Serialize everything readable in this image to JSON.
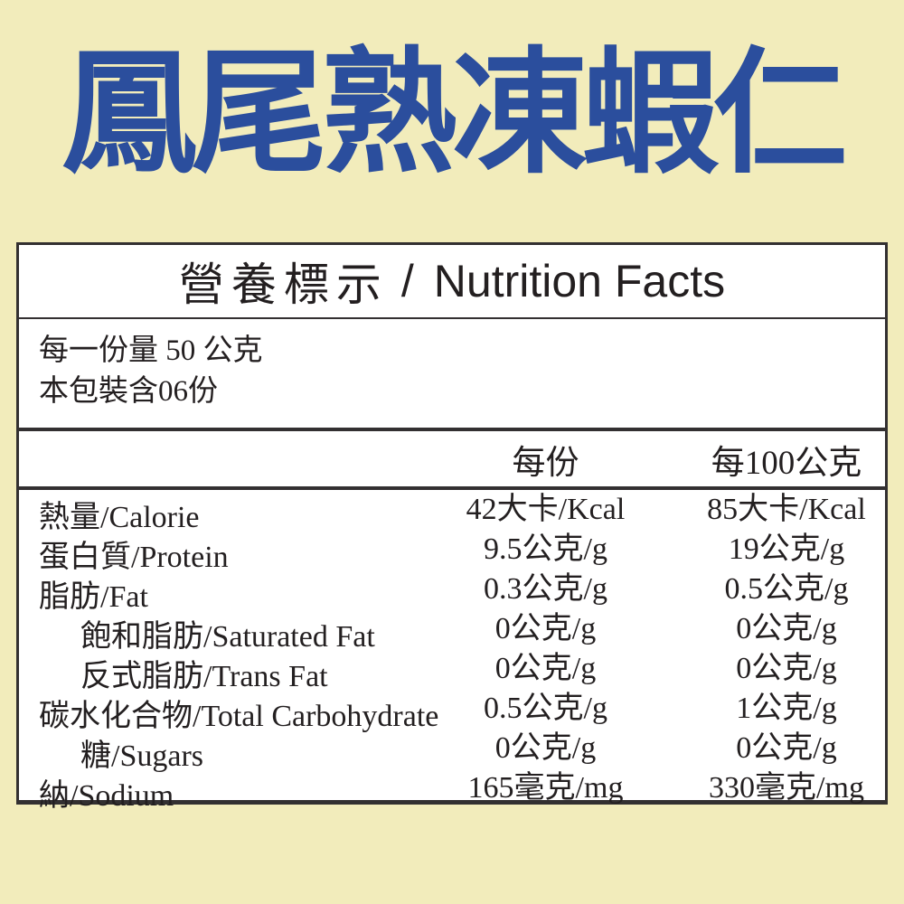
{
  "product": {
    "title": "鳳尾熟凍蝦仁"
  },
  "colors": {
    "background": "#F2ECBB",
    "title_blue": "#2B4E9D",
    "text": "#231F20",
    "border": "#333031",
    "table_background": "#FFFFFF"
  },
  "nutrition_table": {
    "heading_zh": "營養標示",
    "heading_separator": "/",
    "heading_en": "Nutrition Facts",
    "serving_size_line": "每一份量 50 公克",
    "servings_per_pack_line": "本包裝含06份",
    "column_headers": {
      "per_serving": "每份",
      "per_100g": "每100公克"
    },
    "rows": [
      {
        "label": "熱量/Calorie",
        "indent": false,
        "per_serving": "42大卡/Kcal",
        "per_100g": "85大卡/Kcal"
      },
      {
        "label": "蛋白質/Protein",
        "indent": false,
        "per_serving": "9.5公克/g",
        "per_100g": "19公克/g"
      },
      {
        "label": "脂肪/Fat",
        "indent": false,
        "per_serving": "0.3公克/g",
        "per_100g": "0.5公克/g"
      },
      {
        "label": "飽和脂肪/Saturated Fat",
        "indent": true,
        "per_serving": "0公克/g",
        "per_100g": "0公克/g"
      },
      {
        "label": "反式脂肪/Trans Fat",
        "indent": true,
        "per_serving": "0公克/g",
        "per_100g": "0公克/g"
      },
      {
        "label": "碳水化合物/Total Carbohydrate",
        "indent": false,
        "per_serving": "0.5公克/g",
        "per_100g": "1公克/g"
      },
      {
        "label": "糖/Sugars",
        "indent": true,
        "per_serving": "0公克/g",
        "per_100g": "0公克/g"
      },
      {
        "label": "納/Sodium",
        "indent": false,
        "per_serving": "165毫克/mg",
        "per_100g": "330毫克/mg"
      }
    ]
  }
}
